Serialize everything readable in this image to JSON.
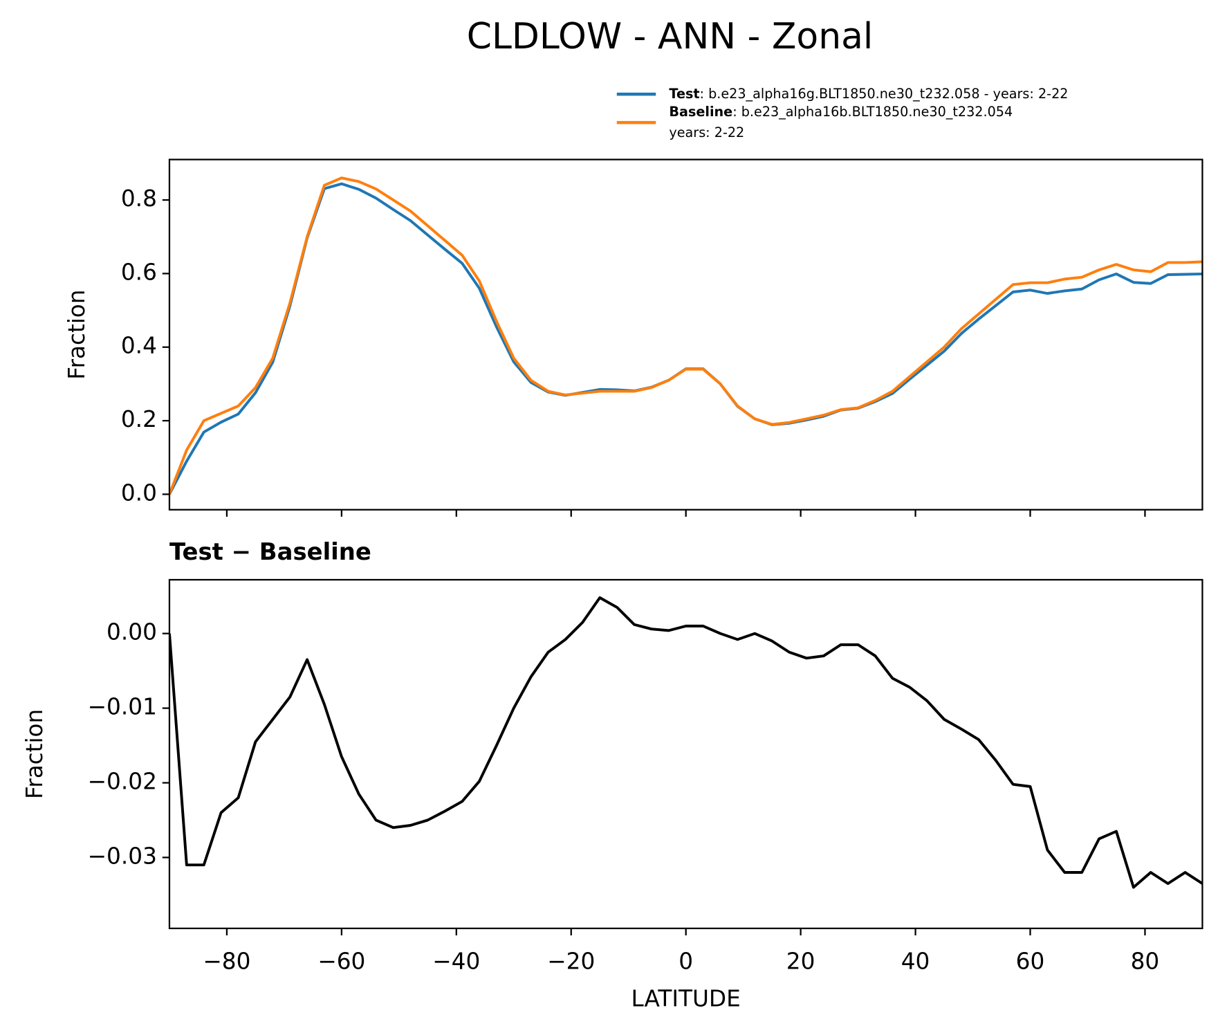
{
  "chart_data": [
    {
      "type": "line",
      "title": "CLDLOW - ANN - Zonal",
      "ylabel": "Fraction",
      "x": [
        -90,
        -87,
        -84,
        -81,
        -78,
        -75,
        -72,
        -69,
        -66,
        -63,
        -60,
        -57,
        -54,
        -51,
        -48,
        -45,
        -42,
        -39,
        -36,
        -33,
        -30,
        -27,
        -24,
        -21,
        -18,
        -15,
        -12,
        -9,
        -6,
        -3,
        0,
        3,
        6,
        9,
        12,
        15,
        18,
        21,
        24,
        27,
        30,
        33,
        36,
        39,
        42,
        45,
        48,
        51,
        54,
        57,
        60,
        63,
        66,
        69,
        72,
        75,
        78,
        81,
        84,
        87,
        90
      ],
      "series": [
        {
          "name": "Test",
          "legend_text": [
            ": b.e23_alpha16g.BLT1850.ne30_t232.058 - years: 2-22"
          ],
          "color": "#1f77b4",
          "values": [
            0.0,
            0.09,
            0.169,
            0.196,
            0.218,
            0.276,
            0.359,
            0.512,
            0.697,
            0.831,
            0.844,
            0.829,
            0.805,
            0.774,
            0.744,
            0.705,
            0.666,
            0.628,
            0.56,
            0.455,
            0.36,
            0.304,
            0.278,
            0.269,
            0.277,
            0.285,
            0.284,
            0.281,
            0.291,
            0.31,
            0.341,
            0.341,
            0.3,
            0.239,
            0.205,
            0.189,
            0.193,
            0.202,
            0.212,
            0.229,
            0.234,
            0.252,
            0.274,
            0.313,
            0.351,
            0.389,
            0.437,
            0.476,
            0.513,
            0.55,
            0.555,
            0.546,
            0.553,
            0.558,
            0.583,
            0.599,
            0.576,
            0.573,
            0.597,
            0.598,
            0.599
          ]
        },
        {
          "name": "Baseline",
          "legend_text": [
            ": b.e23_alpha16b.BLT1850.ne30_t232.054",
            "years: 2-22"
          ],
          "color": "#ff7f0e",
          "values": [
            0.0,
            0.12,
            0.2,
            0.22,
            0.24,
            0.29,
            0.37,
            0.52,
            0.7,
            0.84,
            0.86,
            0.85,
            0.83,
            0.8,
            0.77,
            0.73,
            0.69,
            0.65,
            0.58,
            0.47,
            0.37,
            0.31,
            0.28,
            0.27,
            0.275,
            0.28,
            0.28,
            0.28,
            0.29,
            0.31,
            0.34,
            0.34,
            0.3,
            0.24,
            0.205,
            0.19,
            0.195,
            0.205,
            0.215,
            0.23,
            0.235,
            0.255,
            0.28,
            0.32,
            0.36,
            0.4,
            0.45,
            0.49,
            0.53,
            0.57,
            0.575,
            0.575,
            0.585,
            0.59,
            0.61,
            0.625,
            0.61,
            0.605,
            0.63,
            0.63,
            0.632
          ]
        }
      ],
      "xlim": [
        -90,
        90
      ],
      "xticks": [
        {
          "value": -80,
          "label": "−80"
        },
        {
          "value": -60,
          "label": "−60"
        },
        {
          "value": -40,
          "label": "−40"
        },
        {
          "value": -20,
          "label": "−20"
        },
        0,
        20,
        40,
        60,
        80
      ],
      "ylim": [
        -0.042,
        0.91
      ],
      "yticks": [
        {
          "value": 0,
          "label": "0.0"
        },
        0.2,
        0.4,
        0.6,
        0.8
      ]
    },
    {
      "type": "line",
      "title": "Test − Baseline",
      "ylabel": "Fraction",
      "xlabel": "LATITUDE",
      "x": [
        -90,
        -87,
        -84,
        -81,
        -78,
        -75,
        -72,
        -69,
        -66,
        -63,
        -60,
        -57,
        -54,
        -51,
        -48,
        -45,
        -42,
        -39,
        -36,
        -33,
        -30,
        -27,
        -24,
        -21,
        -18,
        -15,
        -12,
        -9,
        -6,
        -3,
        0,
        3,
        6,
        9,
        12,
        15,
        18,
        21,
        24,
        27,
        30,
        33,
        36,
        39,
        42,
        45,
        48,
        51,
        54,
        57,
        60,
        63,
        66,
        69,
        72,
        75,
        78,
        81,
        84,
        87,
        90
      ],
      "series": [
        {
          "color": "#000000",
          "values": [
            0.0,
            -0.031,
            -0.031,
            -0.024,
            -0.022,
            -0.0145,
            -0.0115,
            -0.0085,
            -0.0035,
            -0.0095,
            -0.0165,
            -0.0215,
            -0.025,
            -0.026,
            -0.0257,
            -0.025,
            -0.0238,
            -0.0225,
            -0.0198,
            -0.015,
            -0.01,
            -0.0058,
            -0.0025,
            -0.0008,
            0.0015,
            0.0048,
            0.0035,
            0.0012,
            0.0006,
            0.0004,
            0.001,
            0.001,
            0.0,
            -0.0008,
            0.0,
            -0.001,
            -0.0025,
            -0.0033,
            -0.003,
            -0.0015,
            -0.0015,
            -0.003,
            -0.006,
            -0.0072,
            -0.009,
            -0.0115,
            -0.0128,
            -0.0142,
            -0.017,
            -0.0202,
            -0.0205,
            -0.029,
            -0.032,
            -0.032,
            -0.0275,
            -0.0265,
            -0.034,
            -0.032,
            -0.0335,
            -0.032,
            -0.0335
          ]
        }
      ],
      "xlim": [
        -90,
        90
      ],
      "xticks": [
        {
          "value": -80,
          "label": "−80"
        },
        {
          "value": -60,
          "label": "−60"
        },
        {
          "value": -40,
          "label": "−40"
        },
        {
          "value": -20,
          "label": "−20"
        },
        0,
        20,
        40,
        60,
        80
      ],
      "ylim": [
        -0.0395,
        0.0072
      ],
      "yticks": [
        {
          "value": -0.03,
          "label": "−0.03"
        },
        {
          "value": -0.02,
          "label": "−0.02"
        },
        {
          "value": -0.01,
          "label": "−0.01"
        },
        {
          "value": 0,
          "label": "0.00"
        }
      ]
    }
  ]
}
